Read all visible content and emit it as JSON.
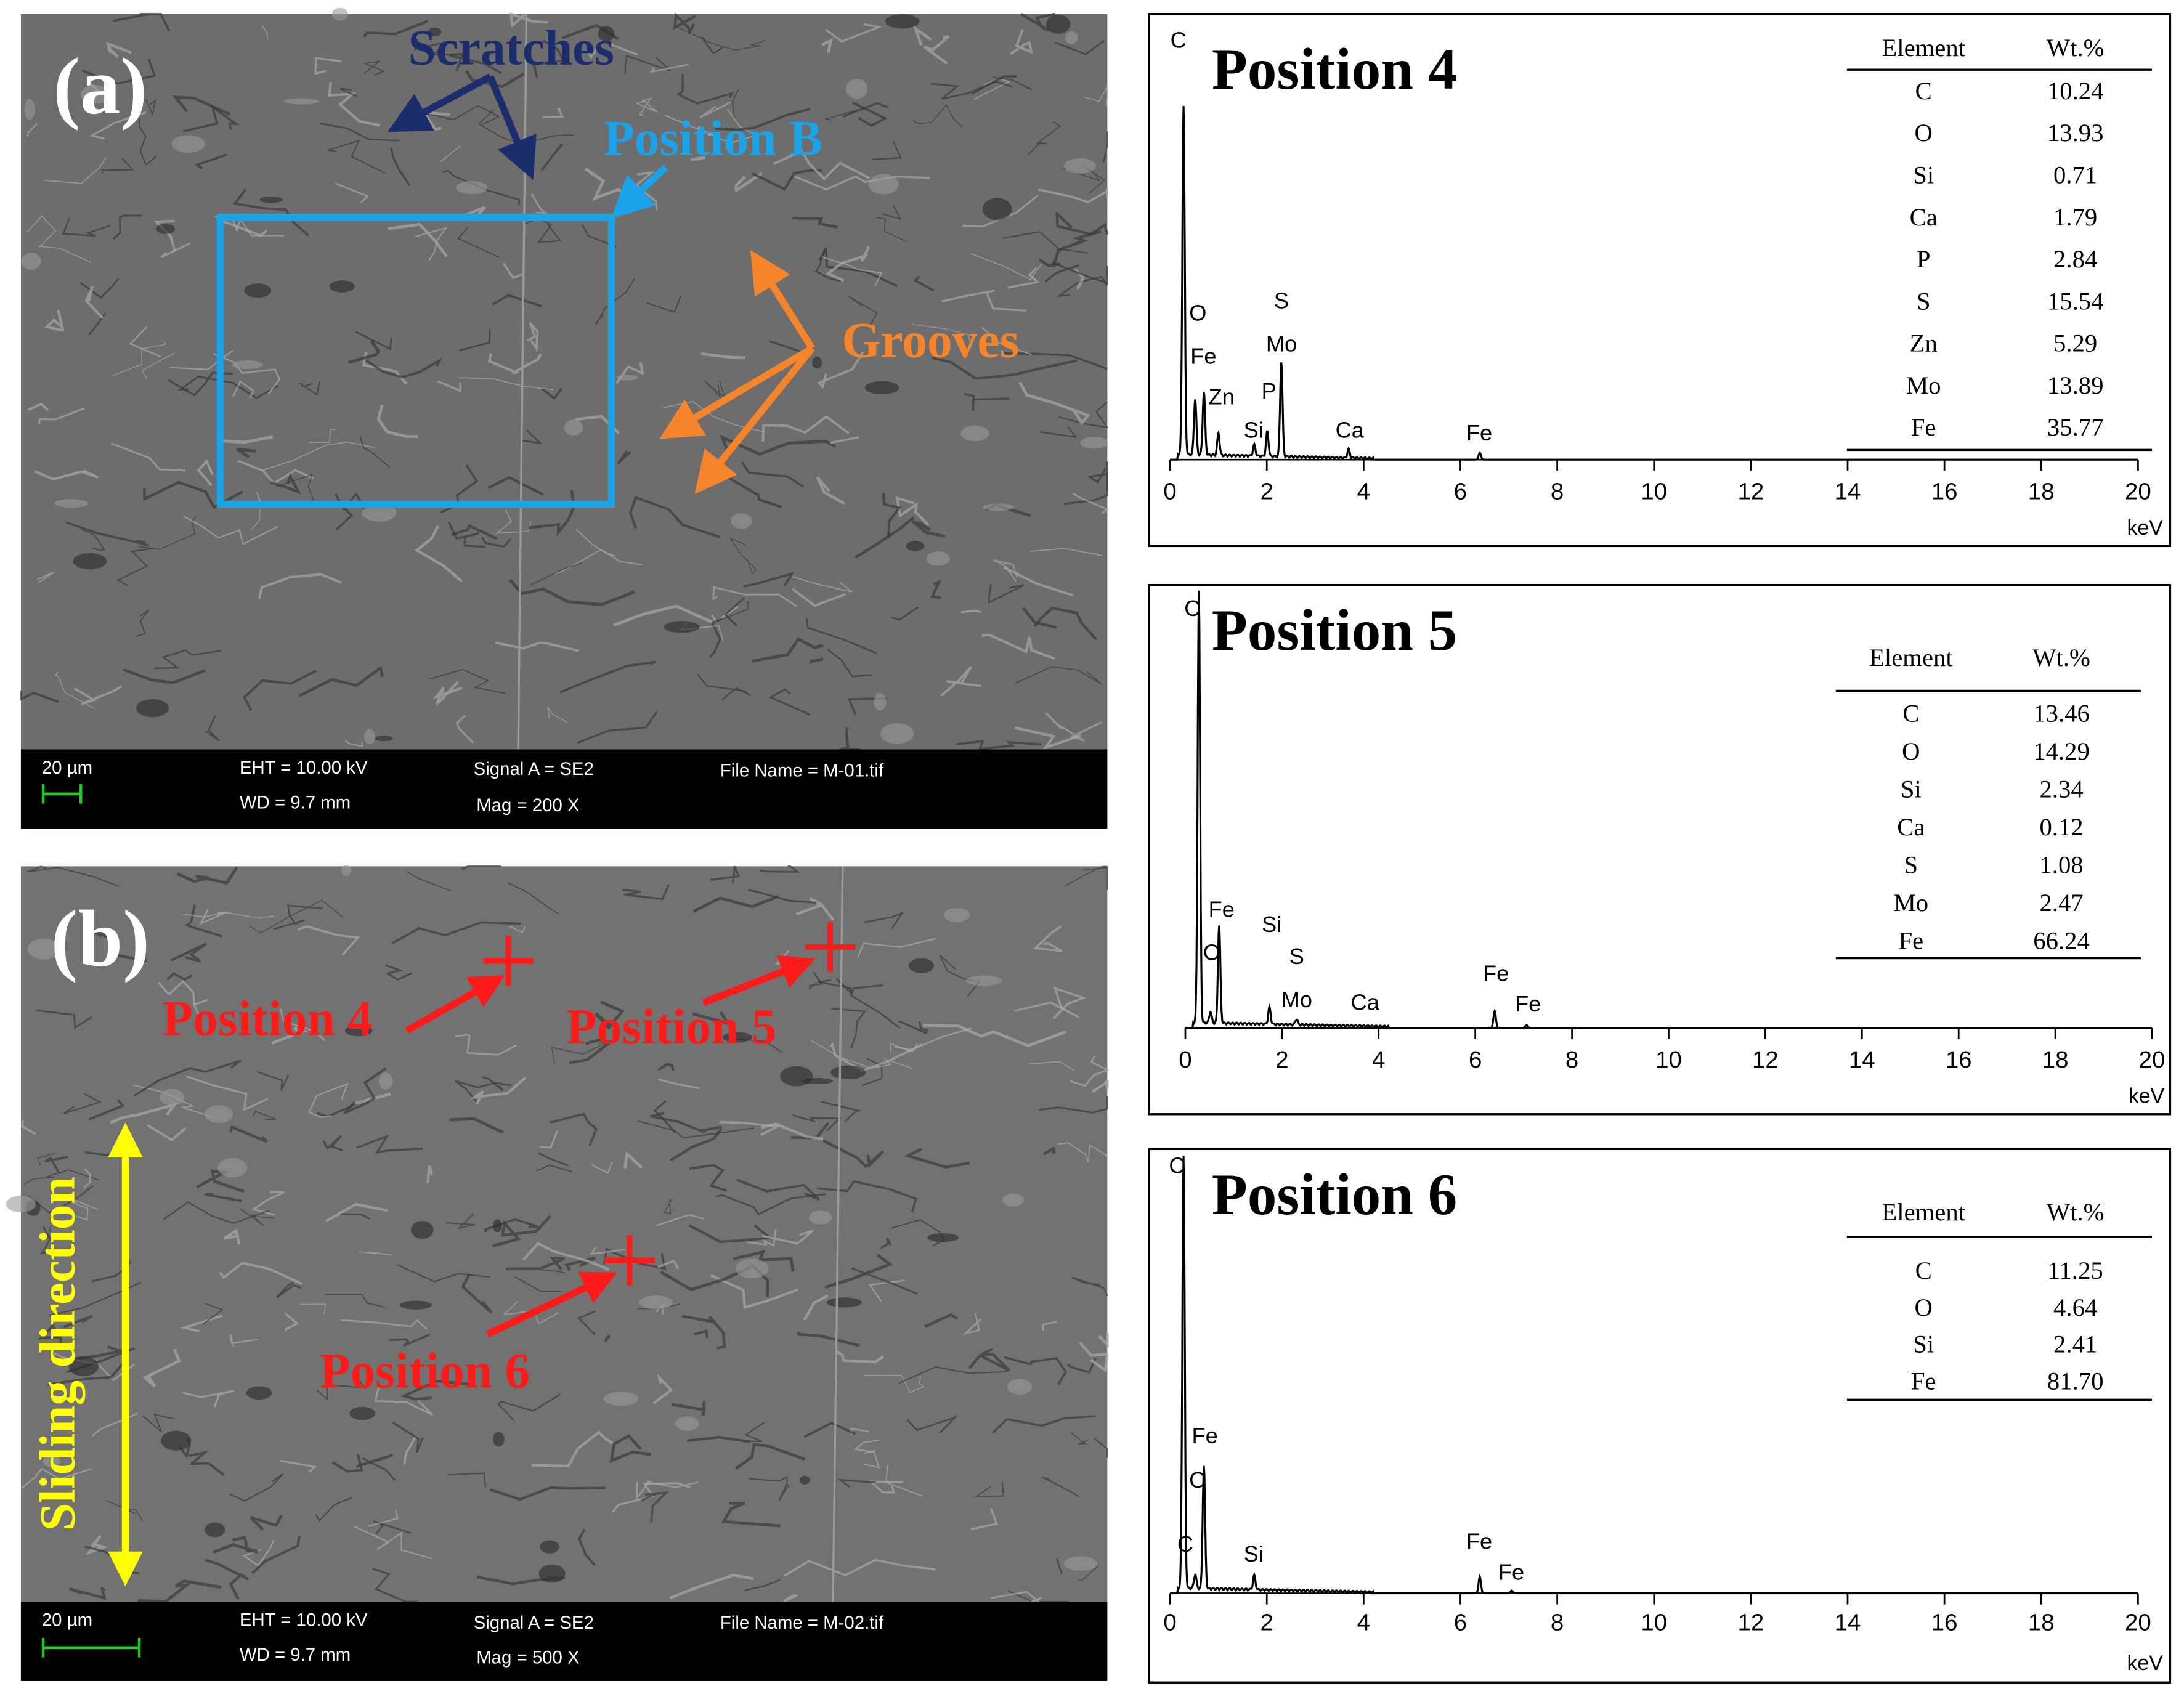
{
  "panels": [
    {
      "label": "(a)",
      "annotations": [
        "Scratches",
        "Position B",
        "Grooves"
      ],
      "info": [
        "20 µm",
        "EHT = 10.00 kV",
        "WD =  9.7 mm",
        "Signal A = SE2",
        "Mag =   200 X",
        "File Name = M-01.tif"
      ]
    },
    {
      "label": "(b)",
      "annotations": [
        "Position 4",
        "Position 5",
        "Position 6",
        "Sliding direction"
      ],
      "info": [
        "20 µm",
        "EHT = 10.00 kV",
        "WD =  9.7 mm",
        "Signal A = SE2",
        "Mag =   500 X",
        "File Name = M-02.tif"
      ]
    }
  ],
  "spectra": [
    {
      "title": "Position 4",
      "table": {
        "header": [
          "Element",
          "Wt.%"
        ],
        "rows": [
          [
            "C",
            10.24
          ],
          [
            "O",
            13.93
          ],
          [
            "Si",
            0.71
          ],
          [
            "Ca",
            1.79
          ],
          [
            "P",
            2.84
          ],
          [
            "S",
            15.54
          ],
          [
            "Zn",
            5.29
          ],
          [
            "Mo",
            13.89
          ],
          [
            "Fe",
            35.77
          ]
        ]
      },
      "peaks": [
        "C",
        "O",
        "Fe",
        "Zn",
        "Si",
        "S",
        "Mo",
        "P",
        "Ca",
        "Fe"
      ],
      "xlim": [
        0,
        20
      ],
      "xticks": [
        0,
        2,
        4,
        6,
        8,
        10,
        12,
        14,
        16,
        18,
        20
      ],
      "xunit": "keV"
    },
    {
      "title": "Position 5",
      "table": {
        "header": [
          "Element",
          "Wt.%"
        ],
        "rows": [
          [
            "C",
            13.46
          ],
          [
            "O",
            14.29
          ],
          [
            "Si",
            2.34
          ],
          [
            "Ca",
            0.12
          ],
          [
            "S",
            1.08
          ],
          [
            "Mo",
            2.47
          ],
          [
            "Fe",
            66.24
          ]
        ]
      },
      "peaks": [
        "C",
        "Fe",
        "O",
        "Si",
        "S",
        "Mo",
        "Ca",
        "Fe",
        "Fe"
      ],
      "xlim": [
        0,
        20
      ],
      "xticks": [
        0,
        2,
        4,
        6,
        8,
        10,
        12,
        14,
        16,
        18,
        20
      ],
      "xunit": "keV"
    },
    {
      "title": "Position 6",
      "table": {
        "header": [
          "Element",
          "Wt.%"
        ],
        "rows": [
          [
            "C",
            11.25
          ],
          [
            "O",
            4.64
          ],
          [
            "Si",
            2.41
          ],
          [
            "Fe",
            {
              "value": 81.7,
              "label": "81.70"
            }
          ]
        ]
      },
      "peaks": [
        "C",
        "Fe",
        "O",
        "C",
        "Si",
        "Fe",
        "Fe"
      ],
      "xlim": [
        0,
        20
      ],
      "xticks": [
        0,
        2,
        4,
        6,
        8,
        10,
        12,
        14,
        16,
        18,
        20
      ],
      "xunit": "keV"
    }
  ]
}
